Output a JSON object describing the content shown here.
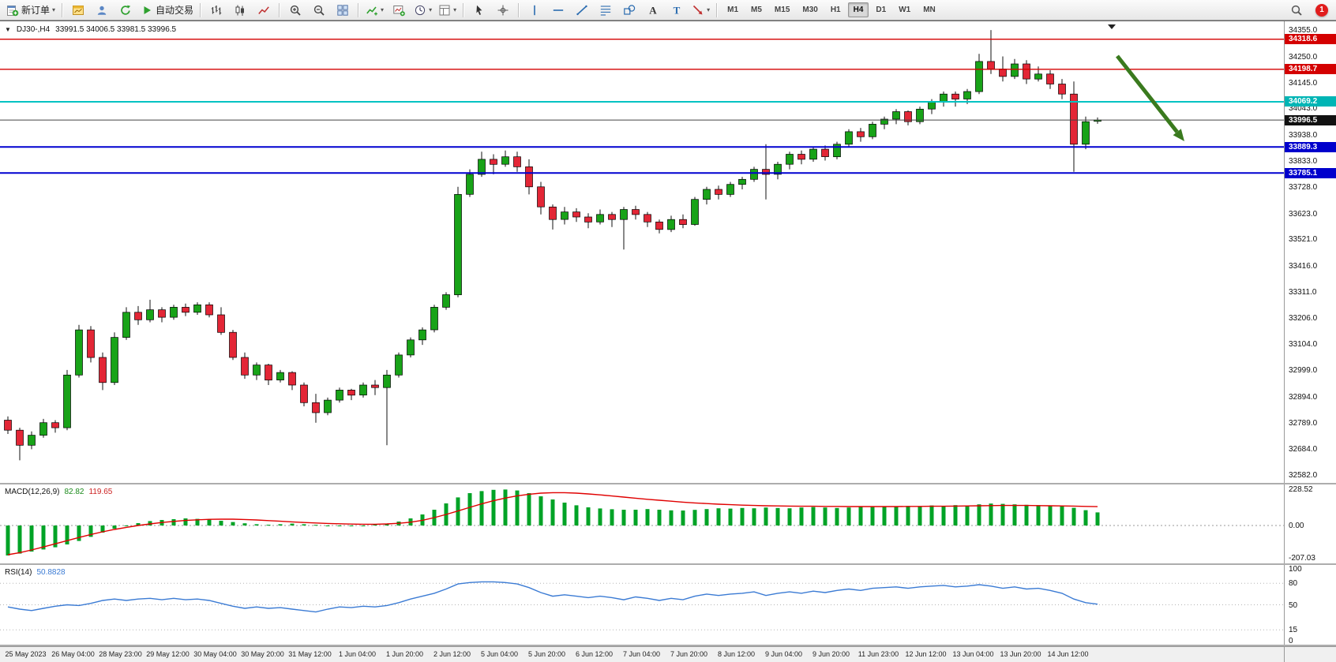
{
  "toolbar": {
    "groups": [
      {
        "name": "order-group",
        "items": [
          {
            "name": "new-order-button",
            "icon": "new-order",
            "label": "新订单",
            "caret": true
          }
        ]
      },
      {
        "name": "window-group",
        "items": [
          {
            "name": "charts-cascade-button",
            "icon": "chart-window"
          },
          {
            "name": "market-watch-button",
            "icon": "profile"
          },
          {
            "name": "refresh-button",
            "icon": "refresh"
          },
          {
            "name": "auto-trading-button",
            "icon": "autotrading",
            "label": "自动交易"
          }
        ]
      },
      {
        "name": "chart-type-group",
        "items": [
          {
            "name": "bar-chart-button",
            "icon": "bars"
          },
          {
            "name": "candlestick-chart-button",
            "icon": "candles"
          },
          {
            "name": "line-chart-button",
            "icon": "linechart"
          }
        ]
      },
      {
        "name": "zoom-group",
        "items": [
          {
            "name": "zoom-in-button",
            "icon": "zoom-in"
          },
          {
            "name": "zoom-out-button",
            "icon": "zoom-out"
          },
          {
            "name": "tile-windows-button",
            "icon": "tile"
          }
        ]
      },
      {
        "name": "chart-tools-group",
        "items": [
          {
            "name": "indicators-button",
            "icon": "indicator",
            "caret": true
          },
          {
            "name": "add-chart-button",
            "icon": "chart-add"
          },
          {
            "name": "periods-button",
            "icon": "clock",
            "caret": true
          },
          {
            "name": "templates-button",
            "icon": "template",
            "caret": true
          }
        ]
      },
      {
        "name": "cursor-group",
        "items": [
          {
            "name": "cursor-button",
            "icon": "cursor"
          },
          {
            "name": "crosshair-button",
            "icon": "crosshair"
          }
        ]
      },
      {
        "name": "objects-group",
        "items": [
          {
            "name": "vertical-line-button",
            "icon": "vline"
          },
          {
            "name": "horizontal-line-button",
            "icon": "hline"
          },
          {
            "name": "trendline-button",
            "icon": "trendline"
          },
          {
            "name": "fibonacci-button",
            "icon": "fibo"
          },
          {
            "name": "shapes-button",
            "icon": "shapes"
          },
          {
            "name": "text-button",
            "icon": "text"
          },
          {
            "name": "text-label-button",
            "icon": "label"
          },
          {
            "name": "arrows-button",
            "icon": "arrows",
            "caret": true
          }
        ]
      }
    ],
    "timeframes": [
      "M1",
      "M5",
      "M15",
      "M30",
      "H1",
      "H4",
      "D1",
      "W1",
      "MN"
    ],
    "active_timeframe": "H4",
    "notification_count": "1"
  },
  "chart": {
    "symbol_period": "DJ30-,H4",
    "ohlc_text": "33991.5 34006.5 33981.5 33996.5"
  },
  "price_scale": {
    "labels": [
      "34355.0",
      "34250.0",
      "34145.0",
      "34043.0",
      "33938.0",
      "33833.0",
      "33728.0",
      "33623.0",
      "33521.0",
      "33416.0",
      "33311.0",
      "33206.0",
      "33104.0",
      "32999.0",
      "32894.0",
      "32789.0",
      "32684.0",
      "32582.0"
    ],
    "tags": [
      {
        "text": "34318.6",
        "price": 34318.6,
        "color": "#d40000"
      },
      {
        "text": "34198.7",
        "price": 34198.7,
        "color": "#d40000"
      },
      {
        "text": "34069.2",
        "price": 34069.2,
        "color": "#00b5b5"
      },
      {
        "text": "33996.5",
        "price": 33996.5,
        "color": "#111111"
      },
      {
        "text": "33889.3",
        "price": 33889.3,
        "color": "#0000cc"
      },
      {
        "text": "33785.1",
        "price": 33785.1,
        "color": "#0000cc"
      }
    ]
  },
  "chart_data": {
    "type": "candlestick",
    "symbol": "DJ30-",
    "timeframe": "H4",
    "ohlc_display": {
      "open": "33991.5",
      "high": "34006.5",
      "low": "33981.5",
      "close": "33996.5"
    },
    "ylim": [
      32550,
      34390
    ],
    "colors": {
      "up": "#18a318",
      "down": "#e32636",
      "wick": "#111111"
    },
    "hlines": [
      {
        "price": 34318.6,
        "color": "#d40000",
        "width": 1.4
      },
      {
        "price": 34198.7,
        "color": "#d40000",
        "width": 1.4
      },
      {
        "price": 34069.2,
        "color": "#00c2c2",
        "width": 2
      },
      {
        "price": 33996.5,
        "color": "#444444",
        "width": 1
      },
      {
        "price": 33889.3,
        "color": "#0000d0",
        "width": 2
      },
      {
        "price": 33785.1,
        "color": "#0000d0",
        "width": 2
      }
    ],
    "annotation_arrow": {
      "from": [
        1415,
        44
      ],
      "to": [
        1500,
        152
      ],
      "color": "#3a7a1e"
    },
    "x_labels": [
      "25 May 2023",
      "26 May 04:00",
      "28 May 23:00",
      "29 May 12:00",
      "30 May 04:00",
      "30 May 20:00",
      "31 May 12:00",
      "1 Jun 04:00",
      "1 Jun 20:00",
      "2 Jun 12:00",
      "5 Jun 04:00",
      "5 Jun 20:00",
      "6 Jun 12:00",
      "7 Jun 04:00",
      "7 Jun 20:00",
      "8 Jun 12:00",
      "9 Jun 04:00",
      "9 Jun 20:00",
      "11 Jun 23:00",
      "12 Jun 12:00",
      "13 Jun 04:00",
      "13 Jun 20:00",
      "14 Jun 12:00"
    ],
    "candles": [
      [
        32800,
        32815,
        32745,
        32760
      ],
      [
        32760,
        32770,
        32640,
        32700
      ],
      [
        32700,
        32755,
        32684,
        32740
      ],
      [
        32740,
        32805,
        32730,
        32790
      ],
      [
        32790,
        32800,
        32750,
        32770
      ],
      [
        32770,
        33000,
        32760,
        32980
      ],
      [
        32980,
        33180,
        32970,
        33160
      ],
      [
        33160,
        33175,
        33030,
        33050
      ],
      [
        33050,
        33070,
        32920,
        32950
      ],
      [
        32950,
        33150,
        32940,
        33130
      ],
      [
        33130,
        33250,
        33120,
        33230
      ],
      [
        33230,
        33255,
        33180,
        33200
      ],
      [
        33200,
        33280,
        33190,
        33240
      ],
      [
        33240,
        33250,
        33190,
        33210
      ],
      [
        33210,
        33260,
        33200,
        33250
      ],
      [
        33250,
        33265,
        33215,
        33230
      ],
      [
        33230,
        33270,
        33220,
        33260
      ],
      [
        33260,
        33270,
        33210,
        33220
      ],
      [
        33220,
        33250,
        33140,
        33150
      ],
      [
        33150,
        33160,
        33040,
        33050
      ],
      [
        33050,
        33070,
        32965,
        32980
      ],
      [
        32980,
        33030,
        32960,
        33020
      ],
      [
        33020,
        33025,
        32940,
        32960
      ],
      [
        32960,
        33000,
        32950,
        32990
      ],
      [
        32990,
        32995,
        32920,
        32940
      ],
      [
        32940,
        32950,
        32855,
        32870
      ],
      [
        32870,
        32905,
        32790,
        32830
      ],
      [
        32830,
        32890,
        32820,
        32880
      ],
      [
        32880,
        32930,
        32870,
        32920
      ],
      [
        32920,
        32925,
        32880,
        32900
      ],
      [
        32900,
        32950,
        32890,
        32940
      ],
      [
        32940,
        32960,
        32900,
        32930
      ],
      [
        32930,
        33000,
        32700,
        32980
      ],
      [
        32980,
        33070,
        32970,
        33060
      ],
      [
        33060,
        33130,
        33050,
        33120
      ],
      [
        33120,
        33170,
        33100,
        33160
      ],
      [
        33160,
        33260,
        33150,
        33250
      ],
      [
        33250,
        33310,
        33240,
        33300
      ],
      [
        33300,
        33730,
        33290,
        33700
      ],
      [
        33700,
        33800,
        33690,
        33780
      ],
      [
        33780,
        33870,
        33770,
        33840
      ],
      [
        33840,
        33860,
        33780,
        33820
      ],
      [
        33820,
        33875,
        33810,
        33850
      ],
      [
        33850,
        33870,
        33790,
        33810
      ],
      [
        33810,
        33840,
        33700,
        33730
      ],
      [
        33730,
        33750,
        33620,
        33650
      ],
      [
        33650,
        33660,
        33560,
        33600
      ],
      [
        33600,
        33650,
        33580,
        33630
      ],
      [
        33630,
        33645,
        33590,
        33610
      ],
      [
        33610,
        33625,
        33565,
        33590
      ],
      [
        33590,
        33640,
        33580,
        33620
      ],
      [
        33620,
        33630,
        33570,
        33600
      ],
      [
        33600,
        33650,
        33480,
        33640
      ],
      [
        33640,
        33655,
        33600,
        33620
      ],
      [
        33620,
        33630,
        33570,
        33590
      ],
      [
        33590,
        33600,
        33545,
        33560
      ],
      [
        33560,
        33615,
        33550,
        33600
      ],
      [
        33600,
        33620,
        33565,
        33580
      ],
      [
        33580,
        33690,
        33575,
        33680
      ],
      [
        33680,
        33730,
        33660,
        33720
      ],
      [
        33720,
        33735,
        33680,
        33700
      ],
      [
        33700,
        33750,
        33690,
        33740
      ],
      [
        33740,
        33770,
        33720,
        33760
      ],
      [
        33760,
        33810,
        33750,
        33800
      ],
      [
        33800,
        33900,
        33680,
        33780
      ],
      [
        33780,
        33830,
        33760,
        33820
      ],
      [
        33820,
        33870,
        33800,
        33860
      ],
      [
        33860,
        33875,
        33820,
        33840
      ],
      [
        33840,
        33890,
        33830,
        33880
      ],
      [
        33880,
        33895,
        33835,
        33850
      ],
      [
        33850,
        33910,
        33840,
        33900
      ],
      [
        33900,
        33960,
        33890,
        33950
      ],
      [
        33950,
        33965,
        33910,
        33930
      ],
      [
        33930,
        33990,
        33920,
        33980
      ],
      [
        33980,
        34010,
        33960,
        34000
      ],
      [
        34000,
        34040,
        33980,
        34030
      ],
      [
        34030,
        34035,
        33975,
        33990
      ],
      [
        33990,
        34050,
        33980,
        34040
      ],
      [
        34040,
        34080,
        34020,
        34070
      ],
      [
        34070,
        34110,
        34050,
        34100
      ],
      [
        34100,
        34110,
        34050,
        34080
      ],
      [
        34080,
        34120,
        34060,
        34110
      ],
      [
        34110,
        34260,
        34100,
        34230
      ],
      [
        34230,
        34355,
        34180,
        34200
      ],
      [
        34200,
        34250,
        34150,
        34170
      ],
      [
        34170,
        34240,
        34160,
        34220
      ],
      [
        34220,
        34235,
        34140,
        34160
      ],
      [
        34160,
        34210,
        34150,
        34180
      ],
      [
        34180,
        34195,
        34120,
        34140
      ],
      [
        34140,
        34160,
        34080,
        34100
      ],
      [
        34100,
        34150,
        33790,
        33900
      ],
      [
        33900,
        34010,
        33880,
        33990
      ],
      [
        33991.5,
        34006.5,
        33981.5,
        33996.5
      ]
    ],
    "macd": {
      "label": "MACD(12,26,9)",
      "value_main": "82.82",
      "value_signal": "119.65",
      "scale_labels": [
        "228.52",
        "0.00",
        "-207.03"
      ],
      "scale_values": [
        228.52,
        0.0,
        -207.03
      ],
      "vlim": [
        -240,
        260
      ],
      "hist_color": "#00a326",
      "signal_color": "#e00000",
      "histogram": [
        -190,
        -178,
        -165,
        -152,
        -138,
        -120,
        -98,
        -72,
        -45,
        -20,
        0,
        15,
        28,
        35,
        40,
        45,
        42,
        38,
        30,
        22,
        14,
        8,
        5,
        8,
        12,
        8,
        4,
        0,
        -3,
        -5,
        0,
        6,
        12,
        25,
        45,
        70,
        100,
        140,
        178,
        205,
        218,
        226,
        228,
        222,
        205,
        185,
        165,
        145,
        128,
        115,
        108,
        103,
        100,
        100,
        104,
        100,
        96,
        95,
        99,
        104,
        109,
        107,
        111,
        109,
        114,
        111,
        109,
        114,
        117,
        114,
        111,
        114,
        119,
        117,
        121,
        119,
        124,
        121,
        127,
        124,
        129,
        127,
        134,
        139,
        137,
        134,
        131,
        129,
        127,
        124,
        112,
        97,
        82.82
      ],
      "signal": [
        -185,
        -172,
        -155,
        -136,
        -116,
        -96,
        -76,
        -57,
        -40,
        -25,
        -12,
        0,
        10,
        19,
        26,
        32,
        36,
        39,
        40,
        40,
        38,
        35,
        31,
        27,
        23,
        19,
        16,
        13,
        11,
        9,
        8,
        8,
        10,
        14,
        21,
        33,
        50,
        70,
        92,
        115,
        137,
        157,
        174,
        188,
        198,
        205,
        208,
        208,
        205,
        200,
        194,
        187,
        180,
        173,
        166,
        160,
        154,
        148,
        143,
        139,
        135,
        132,
        129,
        127,
        125,
        124,
        123,
        122,
        122,
        121,
        121,
        120,
        120,
        120,
        120,
        120,
        121,
        121,
        122,
        122,
        123,
        124,
        125,
        126,
        127,
        127,
        127,
        126,
        125,
        124,
        123,
        121,
        119.65
      ]
    },
    "rsi": {
      "label": "RSI(14)",
      "value_label": "50.8828",
      "scale_labels": [
        "100",
        "80",
        "50",
        "15",
        "0"
      ],
      "levels": [
        80,
        50,
        15
      ],
      "vlim": [
        0,
        100
      ],
      "line_color": "#3b7bd4",
      "values": [
        47,
        44,
        42,
        45,
        48,
        50,
        49,
        52,
        56,
        58,
        56,
        58,
        59,
        57,
        59,
        57,
        58,
        56,
        52,
        48,
        45,
        47,
        45,
        46,
        44,
        42,
        40,
        44,
        47,
        46,
        48,
        47,
        49,
        53,
        58,
        62,
        66,
        72,
        79,
        81,
        82,
        82,
        81,
        79,
        74,
        67,
        62,
        64,
        62,
        60,
        62,
        60,
        57,
        61,
        59,
        56,
        59,
        57,
        62,
        65,
        63,
        65,
        66,
        68,
        63,
        66,
        68,
        66,
        69,
        67,
        70,
        72,
        70,
        73,
        74,
        75,
        73,
        75,
        76,
        77,
        75,
        76,
        78,
        76,
        73,
        75,
        72,
        73,
        70,
        66,
        58,
        53,
        50.88
      ]
    }
  }
}
